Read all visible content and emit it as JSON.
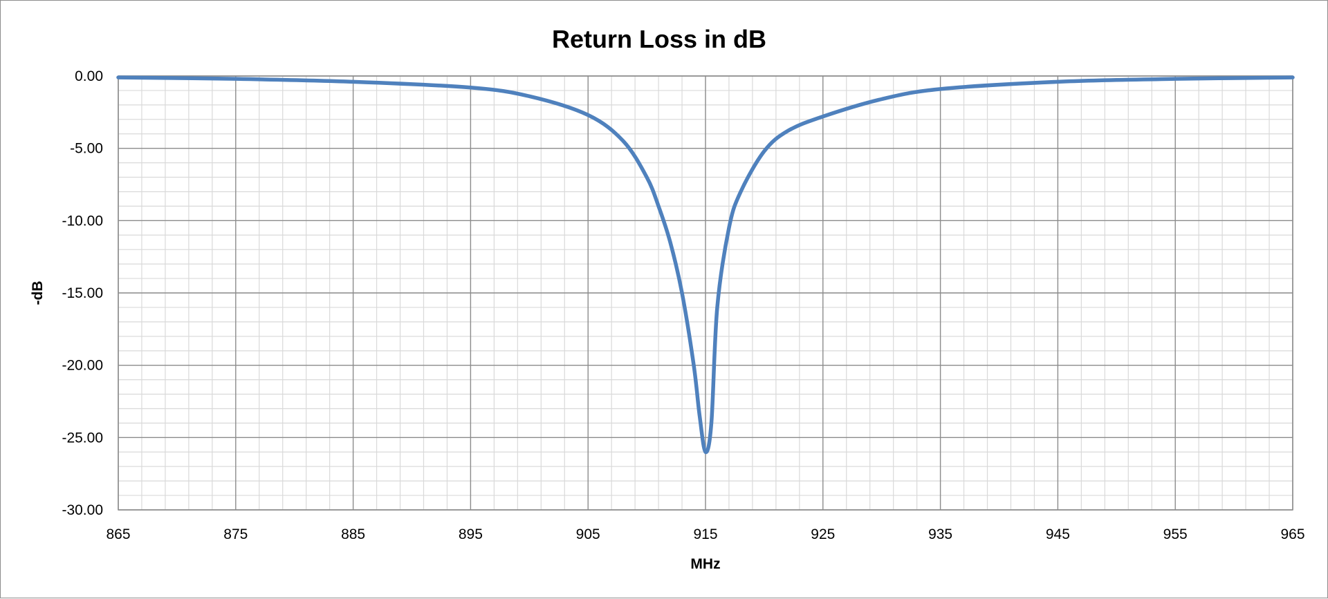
{
  "chart_data": {
    "type": "line",
    "title": "Return Loss in dB",
    "xlabel": "MHz",
    "ylabel": "-dB",
    "xlim": [
      865,
      965
    ],
    "ylim": [
      -30,
      0
    ],
    "x_ticks": [
      865,
      875,
      885,
      895,
      905,
      915,
      925,
      935,
      945,
      955,
      965
    ],
    "x_tick_labels": [
      "865",
      "875",
      "885",
      "895",
      "905",
      "915",
      "925",
      "935",
      "945",
      "955",
      "965"
    ],
    "y_ticks": [
      0,
      -5,
      -10,
      -15,
      -20,
      -25,
      -30
    ],
    "y_tick_labels": [
      "0.00",
      "-5.00",
      "-10.00",
      "-15.00",
      "-20.00",
      "-25.00",
      "-30.00"
    ],
    "x_minor_step": 2,
    "y_minor_step": 1,
    "grid": true,
    "legend": "none",
    "series": [
      {
        "color": "#4f81bd",
        "x": [
          865,
          875,
          885,
          895,
          900,
          905,
          908,
          910,
          911,
          912,
          913,
          914,
          914.5,
          915,
          915.5,
          916,
          917,
          918,
          920,
          922,
          925,
          930,
          935,
          945,
          955,
          965
        ],
        "y": [
          -0.1,
          -0.2,
          -0.4,
          -0.8,
          -1.4,
          -2.7,
          -4.5,
          -7.0,
          -9.0,
          -11.5,
          -15.0,
          -20.0,
          -23.5,
          -26.0,
          -24.0,
          -16.0,
          -10.5,
          -8.0,
          -5.2,
          -3.8,
          -2.8,
          -1.6,
          -0.9,
          -0.4,
          -0.2,
          -0.1
        ]
      }
    ]
  }
}
